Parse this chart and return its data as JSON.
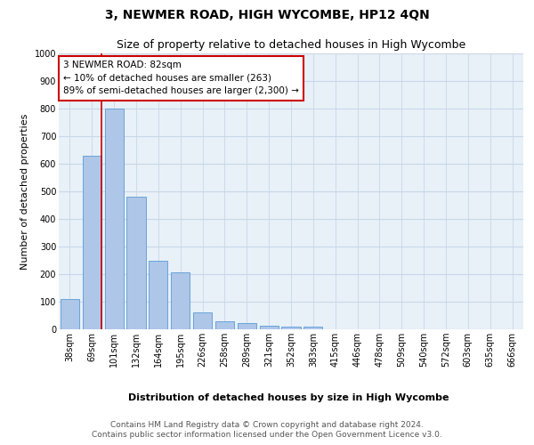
{
  "title": "3, NEWMER ROAD, HIGH WYCOMBE, HP12 4QN",
  "subtitle": "Size of property relative to detached houses in High Wycombe",
  "xlabel": "Distribution of detached houses by size in High Wycombe",
  "ylabel": "Number of detached properties",
  "footer_line1": "Contains HM Land Registry data © Crown copyright and database right 2024.",
  "footer_line2": "Contains public sector information licensed under the Open Government Licence v3.0.",
  "annotation_line1": "3 NEWMER ROAD: 82sqm",
  "annotation_line2": "← 10% of detached houses are smaller (263)",
  "annotation_line3": "89% of semi-detached houses are larger (2,300) →",
  "bar_values": [
    110,
    630,
    800,
    480,
    250,
    205,
    60,
    28,
    22,
    12,
    10,
    10,
    0,
    0,
    0,
    0,
    0,
    0,
    0,
    0,
    0
  ],
  "categories": [
    "38sqm",
    "69sqm",
    "101sqm",
    "132sqm",
    "164sqm",
    "195sqm",
    "226sqm",
    "258sqm",
    "289sqm",
    "321sqm",
    "352sqm",
    "383sqm",
    "415sqm",
    "446sqm",
    "478sqm",
    "509sqm",
    "540sqm",
    "572sqm",
    "603sqm",
    "635sqm",
    "666sqm"
  ],
  "bar_color": "#aec6e8",
  "bar_edge_color": "#5a9bd5",
  "vline_color": "#cc0000",
  "ylim": [
    0,
    1000
  ],
  "yticks": [
    0,
    100,
    200,
    300,
    400,
    500,
    600,
    700,
    800,
    900,
    1000
  ],
  "grid_color": "#c8d8e8",
  "bg_color": "#e8f0f8",
  "annotation_box_color": "#cc0000",
  "title_fontsize": 10,
  "subtitle_fontsize": 9,
  "axis_label_fontsize": 8,
  "tick_fontsize": 7,
  "annotation_fontsize": 7.5,
  "footer_fontsize": 6.5
}
